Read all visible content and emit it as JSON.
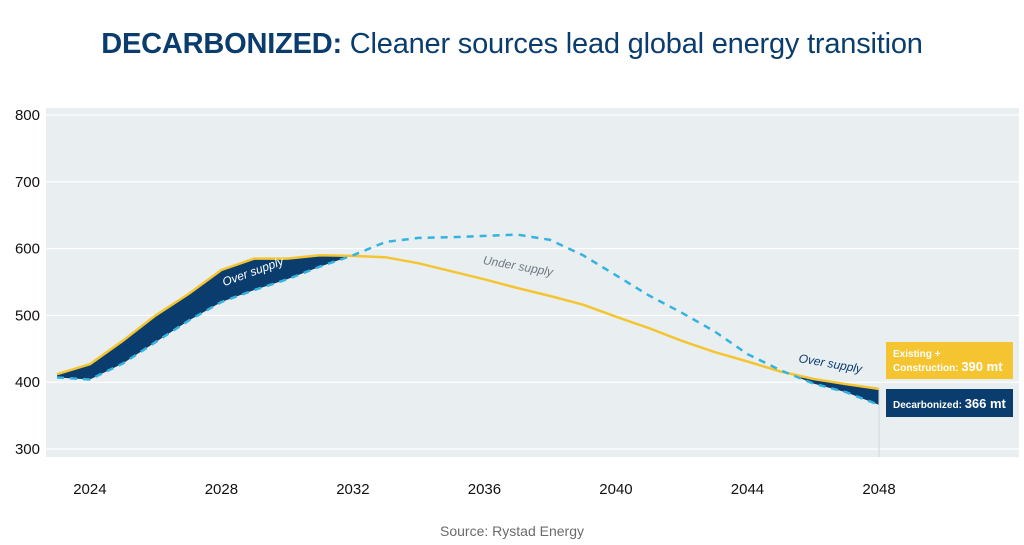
{
  "title": {
    "prefix": "DECARBONIZED:",
    "rest": "Cleaner sources lead global energy transition"
  },
  "source": "Source: Rystad Energy",
  "colors": {
    "plot_bg": "#e9eef1",
    "existing": "#f5c531",
    "decarbonized": "#33b3e0",
    "gap_fill": "#0a3d6e",
    "label_under": "#6f7a82"
  },
  "chart_data": {
    "type": "line",
    "xlim": [
      2022.7,
      2051
    ],
    "ylim": [
      300,
      800
    ],
    "y_ticks": [
      300,
      400,
      500,
      600,
      700,
      800
    ],
    "x_ticks": [
      "2024",
      "2028",
      "2032",
      "2036",
      "2040",
      "2044",
      "2048"
    ],
    "grid": true,
    "series": [
      {
        "name": "Existing + Construction",
        "style": "solid",
        "x": [
          2023,
          2024,
          2025,
          2026,
          2027,
          2028,
          2029,
          2030,
          2031,
          2032,
          2033,
          2034,
          2035,
          2036,
          2037,
          2038,
          2039,
          2040,
          2041,
          2042,
          2043,
          2044,
          2045,
          2046,
          2047,
          2048
        ],
        "values": [
          412,
          427,
          462,
          500,
          532,
          568,
          585,
          585,
          590,
          589,
          587,
          578,
          566,
          554,
          541,
          529,
          516,
          498,
          481,
          462,
          445,
          431,
          416,
          405,
          397,
          390
        ]
      },
      {
        "name": "Decarbonized",
        "style": "dashed",
        "x": [
          2023,
          2024,
          2025,
          2026,
          2027,
          2028,
          2029,
          2030,
          2031,
          2032,
          2033,
          2034,
          2035,
          2036,
          2037,
          2038,
          2039,
          2040,
          2041,
          2042,
          2043,
          2044,
          2045,
          2046,
          2047,
          2048
        ],
        "values": [
          407,
          404,
          428,
          460,
          492,
          520,
          538,
          554,
          573,
          590,
          610,
          616,
          617,
          619,
          621,
          613,
          590,
          560,
          530,
          504,
          476,
          442,
          418,
          398,
          385,
          366
        ]
      }
    ],
    "annotations": [
      {
        "text": "Over supply",
        "x": 2029.0,
        "y": 560,
        "angle": -20,
        "color": "#ffffff"
      },
      {
        "text": "Under supply",
        "x": 2037.0,
        "y": 568,
        "angle": 10,
        "color": "#6f7a82"
      },
      {
        "text": "Over supply",
        "x": 2046.5,
        "y": 422,
        "angle": 10,
        "color": "#0a3d6e"
      }
    ],
    "end_labels": [
      {
        "line1": "Existing +",
        "line2": "Construction:",
        "value": "390 mt",
        "color": "#f5c531"
      },
      {
        "line1": "Decarbonized:",
        "value": "366 mt",
        "color": "#0a3d6e"
      }
    ]
  }
}
